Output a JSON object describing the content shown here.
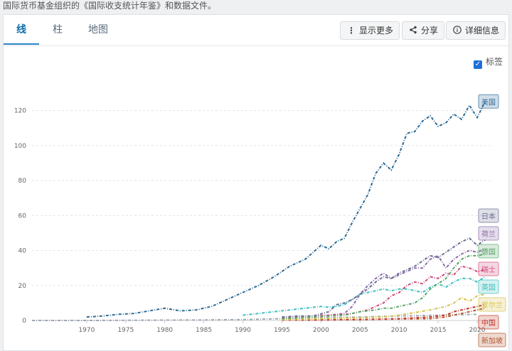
{
  "source_note": "国际货币基金组织的《国际收支统计年鉴》和数据文件。",
  "tabs": [
    {
      "label": "线",
      "active": true
    },
    {
      "label": "柱",
      "active": false
    },
    {
      "label": "地图",
      "active": false
    }
  ],
  "toolbar": {
    "more_label": "显示更多",
    "share_label": "分享",
    "details_label": "详细信息"
  },
  "labels_checkbox": {
    "label": "标签",
    "checked": true
  },
  "chart_data": {
    "type": "line",
    "title": "",
    "xlabel": "",
    "ylabel": "",
    "xlim": [
      1963,
      2022
    ],
    "ylim": [
      0,
      130
    ],
    "x_ticks": [
      1970,
      1975,
      1980,
      1985,
      1990,
      1995,
      2000,
      2005,
      2010,
      2015,
      2020
    ],
    "y_ticks": [
      0,
      20,
      40,
      60,
      80,
      100,
      120
    ],
    "grid": "horizontal dashed",
    "series": [
      {
        "name": "美国",
        "color": "#2c6a96",
        "x": [
          1970,
          1972,
          1974,
          1976,
          1978,
          1980,
          1982,
          1984,
          1986,
          1988,
          1990,
          1992,
          1994,
          1996,
          1998,
          2000,
          2001,
          2002,
          2003,
          2004,
          2005,
          2006,
          2007,
          2008,
          2009,
          2010,
          2011,
          2012,
          2013,
          2014,
          2015,
          2016,
          2017,
          2018,
          2019,
          2020,
          2021
        ],
        "y": [
          2,
          2.5,
          3.5,
          4,
          5.5,
          7,
          5.5,
          6,
          8,
          12,
          16,
          20,
          25,
          31,
          35,
          43,
          41,
          45,
          47,
          56,
          64,
          72,
          84,
          90,
          86,
          95,
          107,
          108,
          114,
          117,
          111,
          113,
          118,
          115,
          123,
          116,
          125
        ]
      },
      {
        "name": "德国",
        "color": "#5aa66b",
        "x": [
          1995,
          1997,
          1999,
          2001,
          2003,
          2004,
          2005,
          2006,
          2007,
          2008,
          2009,
          2010,
          2011,
          2012,
          2013,
          2014,
          2015,
          2016,
          2017,
          2018,
          2019,
          2020,
          2021
        ],
        "y": [
          1,
          1.5,
          2,
          2.5,
          3,
          4,
          5,
          5.5,
          6,
          7,
          7,
          8,
          9,
          10,
          13,
          18,
          21,
          24,
          30,
          35,
          37,
          37,
          38
        ]
      },
      {
        "name": "日本",
        "color": "#6a6c92",
        "x": [
          1995,
          1997,
          1999,
          2001,
          2002,
          2003,
          2004,
          2005,
          2006,
          2007,
          2008,
          2009,
          2010,
          2011,
          2012,
          2013,
          2014,
          2015,
          2016,
          2017,
          2018,
          2019,
          2020,
          2021
        ],
        "y": [
          2,
          2.5,
          2.5,
          5,
          9,
          10,
          12,
          15,
          18,
          22,
          25,
          24,
          27,
          29,
          31,
          34,
          37,
          36,
          39,
          42,
          45,
          47,
          43,
          46
        ]
      },
      {
        "name": "瑞士",
        "color": "#d14a7a",
        "x": [
          1995,
          1997,
          1999,
          2001,
          2003,
          2004,
          2005,
          2006,
          2007,
          2008,
          2009,
          2010,
          2011,
          2012,
          2013,
          2014,
          2015,
          2016,
          2017,
          2018,
          2019,
          2020,
          2021
        ],
        "y": [
          1.5,
          2,
          2.5,
          3,
          3.5,
          4,
          5,
          6,
          8,
          10,
          14,
          16,
          20,
          22,
          21,
          25,
          24,
          27,
          26,
          31,
          30,
          28,
          29
        ]
      },
      {
        "name": "英国",
        "color": "#3fbfbf",
        "x": [
          1990,
          1993,
          1996,
          1998,
          2000,
          2001,
          2002,
          2003,
          2004,
          2005,
          2006,
          2007,
          2008,
          2009,
          2010,
          2011,
          2012,
          2013,
          2014,
          2015,
          2016,
          2017,
          2018,
          2019,
          2020,
          2021
        ],
        "y": [
          3,
          4.5,
          6,
          7,
          8,
          7.5,
          8,
          9,
          12,
          15,
          16,
          17,
          18,
          17,
          18,
          18,
          17,
          16,
          19,
          21,
          19,
          22,
          24,
          24,
          22,
          25
        ]
      },
      {
        "name": "荷兰",
        "color": "#8a6ba8",
        "x": [
          1995,
          1997,
          1999,
          2001,
          2003,
          2004,
          2005,
          2006,
          2007,
          2008,
          2009,
          2010,
          2011,
          2012,
          2013,
          2014,
          2015,
          2016,
          2017,
          2018,
          2019,
          2020,
          2021
        ],
        "y": [
          1.5,
          2,
          2.5,
          3,
          4,
          8,
          15,
          20,
          24,
          27,
          24,
          26,
          28,
          30,
          30,
          35,
          37,
          30,
          35,
          38,
          40,
          39,
          41
        ]
      },
      {
        "name": "爱尔兰",
        "color": "#d6c04a",
        "x": [
          1995,
          2000,
          2005,
          2008,
          2010,
          2012,
          2014,
          2016,
          2017,
          2018,
          2019,
          2020,
          2021
        ],
        "y": [
          0.5,
          1,
          1.5,
          2,
          3,
          4.5,
          6,
          8,
          10,
          13,
          11,
          14,
          15
        ]
      },
      {
        "name": "中国",
        "color": "#c0392b",
        "x": [
          1995,
          2000,
          2005,
          2008,
          2010,
          2012,
          2014,
          2016,
          2017,
          2018,
          2019,
          2020,
          2021
        ],
        "y": [
          0.2,
          0.3,
          0.5,
          0.8,
          1,
          1.5,
          2,
          3,
          5,
          6,
          7,
          8,
          9
        ]
      },
      {
        "name": "新加坡",
        "color": "#b3562f",
        "x": [
          1995,
          2000,
          2005,
          2010,
          2014,
          2016,
          2017,
          2018,
          2019,
          2020,
          2021
        ],
        "y": [
          0.2,
          0.3,
          0.5,
          0.8,
          1,
          2,
          3,
          4,
          5,
          6,
          7
        ]
      },
      {
        "name": "",
        "color": "#a0a7b0",
        "x": [
          1963,
          1970,
          1975,
          1980,
          1985,
          1990,
          1995,
          2000,
          2005,
          2010,
          2015,
          2020
        ],
        "y": [
          0,
          0,
          0.1,
          0.2,
          0.3,
          0.5,
          1,
          1.5,
          2,
          2.5,
          3,
          3.5
        ]
      }
    ]
  }
}
